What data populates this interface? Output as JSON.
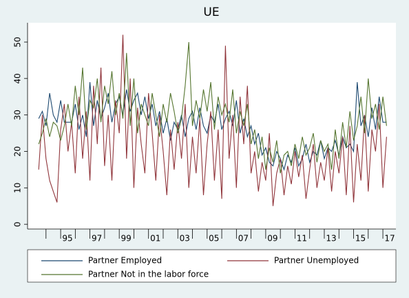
{
  "chart_data": {
    "type": "line",
    "title": "UE",
    "x": [
      1993.5,
      1993.75,
      1994,
      1994.25,
      1994.5,
      1994.75,
      1995,
      1995.25,
      1995.5,
      1995.75,
      1996,
      1996.25,
      1996.5,
      1996.75,
      1997,
      1997.25,
      1997.5,
      1997.75,
      1998,
      1998.25,
      1998.5,
      1998.75,
      1999,
      1999.25,
      1999.5,
      1999.75,
      2000,
      2000.25,
      2000.5,
      2000.75,
      2001,
      2001.25,
      2001.5,
      2001.75,
      2002,
      2002.25,
      2002.5,
      2002.75,
      2003,
      2003.25,
      2003.5,
      2003.75,
      2004,
      2004.25,
      2004.5,
      2004.75,
      2005,
      2005.25,
      2005.5,
      2005.75,
      2006,
      2006.25,
      2006.5,
      2006.75,
      2007,
      2007.25,
      2007.5,
      2007.75,
      2008,
      2008.25,
      2008.5,
      2008.75,
      2009,
      2009.25,
      2009.5,
      2009.75,
      2010,
      2010.25,
      2010.5,
      2010.75,
      2011,
      2011.25,
      2011.5,
      2011.75,
      2012,
      2012.25,
      2012.5,
      2012.75,
      2013,
      2013.25,
      2013.5,
      2013.75,
      2014,
      2014.25,
      2014.5,
      2014.75,
      2015,
      2015.25,
      2015.5,
      2015.75,
      2016,
      2016.25,
      2016.5,
      2016.75,
      2017,
      2017.25
    ],
    "series": [
      {
        "name": "Partner Employed",
        "color": "#1a476f",
        "values": [
          29,
          31,
          27,
          36,
          30,
          28,
          34,
          28,
          28,
          28,
          33,
          26,
          30,
          24,
          39,
          27,
          34,
          29,
          32,
          36,
          28,
          33,
          35,
          30,
          37,
          31,
          34,
          36,
          30,
          35,
          29,
          33,
          27,
          31,
          25,
          29,
          23,
          28,
          26,
          30,
          24,
          29,
          31,
          26,
          32,
          27,
          25,
          30,
          28,
          33,
          26,
          29,
          31,
          27,
          34,
          25,
          29,
          24,
          27,
          22,
          25,
          19,
          21,
          17,
          16,
          20,
          18,
          15,
          19,
          17,
          21,
          16,
          18,
          22,
          17,
          20,
          19,
          23,
          18,
          21,
          20,
          23,
          19,
          24,
          21,
          22,
          20,
          39,
          27,
          30,
          24,
          32,
          26,
          35,
          28,
          28
        ]
      },
      {
        "name": "Partner Unemployed",
        "color": "#90353b",
        "values": [
          15,
          30,
          18,
          12,
          9,
          6,
          26,
          33,
          20,
          28,
          14,
          35,
          18,
          31,
          12,
          38,
          22,
          43,
          16,
          30,
          12,
          34,
          25,
          52,
          18,
          40,
          10,
          32,
          22,
          14,
          36,
          25,
          12,
          30,
          20,
          8,
          26,
          15,
          28,
          18,
          33,
          10,
          24,
          14,
          29,
          8,
          22,
          31,
          12,
          26,
          7,
          49,
          18,
          30,
          10,
          35,
          22,
          38,
          14,
          20,
          9,
          17,
          12,
          25,
          5,
          14,
          18,
          8,
          16,
          11,
          20,
          13,
          19,
          7,
          15,
          22,
          10,
          17,
          12,
          21,
          9,
          20,
          14,
          24,
          8,
          27,
          6,
          22,
          12,
          30,
          9,
          26,
          20,
          33,
          10,
          24
        ]
      },
      {
        "name": "Partner Not in the labor force",
        "color": "#55752f",
        "values": [
          22,
          25,
          29,
          24,
          28,
          27,
          23,
          27,
          33,
          27,
          38,
          30,
          43,
          26,
          34,
          32,
          40,
          28,
          38,
          33,
          42,
          30,
          36,
          29,
          47,
          27,
          40,
          25,
          33,
          30,
          27,
          36,
          30,
          24,
          33,
          28,
          36,
          31,
          25,
          29,
          38,
          50,
          27,
          34,
          29,
          37,
          31,
          39,
          26,
          35,
          30,
          33,
          28,
          37,
          25,
          31,
          27,
          33,
          22,
          26,
          18,
          24,
          15,
          21,
          17,
          23,
          14,
          19,
          20,
          16,
          22,
          18,
          24,
          19,
          21,
          25,
          17,
          23,
          20,
          22,
          15,
          26,
          18,
          28,
          21,
          31,
          23,
          27,
          35,
          25,
          40,
          29,
          33,
          26,
          35,
          27
        ]
      }
    ],
    "xlim": [
      1992.74,
      2017.89
    ],
    "xticks": [
      {
        "value": 1995,
        "label": "95"
      },
      {
        "value": 1997,
        "label": "97"
      },
      {
        "value": 1999,
        "label": "99"
      },
      {
        "value": 2001,
        "label": "01"
      },
      {
        "value": 2003,
        "label": "03"
      },
      {
        "value": 2005,
        "label": "05"
      },
      {
        "value": 2007,
        "label": "07"
      },
      {
        "value": 2009,
        "label": "09"
      },
      {
        "value": 2011,
        "label": "11"
      },
      {
        "value": 2013,
        "label": "13"
      },
      {
        "value": 2015,
        "label": "15"
      },
      {
        "value": 2017,
        "label": "17"
      }
    ],
    "xminorticks": [
      1994,
      1996,
      1998,
      2000,
      2002,
      2004,
      2006,
      2008,
      2010,
      2012,
      2014,
      2016
    ],
    "ylim": [
      -1.3,
      55.3
    ],
    "yticks": [
      0,
      10,
      20,
      30,
      40,
      50
    ],
    "grid": false
  }
}
